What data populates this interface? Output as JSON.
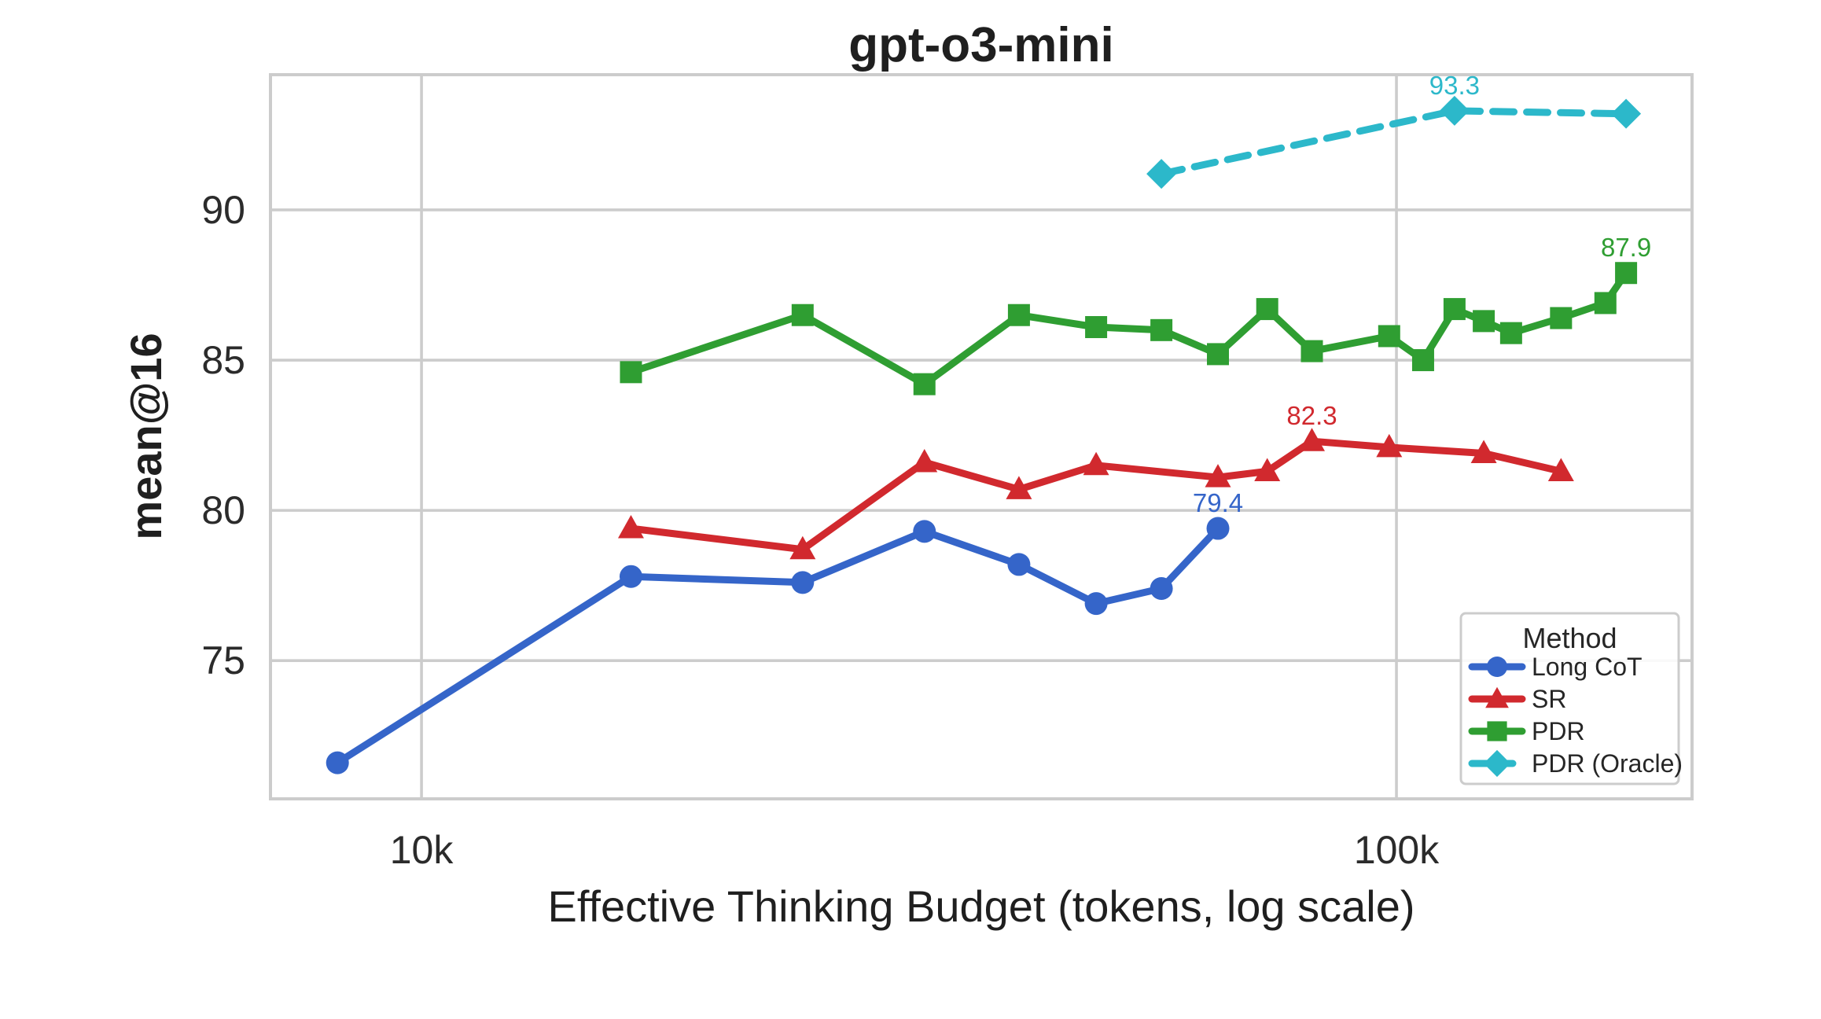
{
  "colors": {
    "background": "#ffffff",
    "grid": "#cccccc",
    "plot_border": "#cccccc",
    "text": "#1f1f1f",
    "tick_text": "#2b2b2b"
  },
  "chart_data": {
    "type": "line",
    "title": "gpt-o3-mini",
    "xlabel": "Effective Thinking Budget (tokens, log scale)",
    "ylabel": "mean@16",
    "x_scale": "log",
    "xlim": [
      7000,
      201000
    ],
    "ylim": [
      70.4,
      94.5
    ],
    "grid": true,
    "x_ticks": [
      {
        "value": 10000,
        "label": "10k"
      },
      {
        "value": 100000,
        "label": "100k"
      }
    ],
    "y_ticks": [
      {
        "value": 75,
        "label": "75"
      },
      {
        "value": 80,
        "label": "80"
      },
      {
        "value": 85,
        "label": "85"
      },
      {
        "value": 90,
        "label": "90"
      }
    ],
    "legend": {
      "title": "Method",
      "position": "lower right"
    },
    "series": [
      {
        "name": "Long CoT",
        "color": "#3565c9",
        "marker": "circle",
        "line_style": "solid",
        "x": [
          8200,
          16400,
          24600,
          32800,
          41000,
          49200,
          57400,
          65600
        ],
        "y": [
          71.6,
          77.8,
          77.6,
          79.3,
          78.2,
          76.9,
          77.4,
          79.4
        ]
      },
      {
        "name": "SR",
        "color": "#d1292e",
        "marker": "triangle",
        "line_style": "solid",
        "x": [
          16400,
          24600,
          32800,
          41000,
          49200,
          65600,
          73700,
          81900,
          98300,
          122900,
          147500
        ],
        "y": [
          79.4,
          78.7,
          81.6,
          80.7,
          81.5,
          81.1,
          81.3,
          82.3,
          82.1,
          81.9,
          81.3
        ]
      },
      {
        "name": "PDR",
        "color": "#2f9e32",
        "marker": "square",
        "line_style": "solid",
        "x": [
          16400,
          24600,
          32800,
          41000,
          49200,
          57400,
          65600,
          73700,
          81900,
          98300,
          106500,
          114700,
          122900,
          131100,
          147500,
          163800,
          172000
        ],
        "y": [
          84.6,
          86.5,
          84.2,
          86.5,
          86.1,
          86.0,
          85.2,
          86.7,
          85.3,
          85.8,
          85.0,
          86.7,
          86.3,
          85.9,
          86.4,
          86.9,
          87.9
        ]
      },
      {
        "name": "PDR (Oracle)",
        "color": "#2cb8ca",
        "marker": "diamond",
        "line_style": "dashed",
        "x": [
          57400,
          114700,
          172000
        ],
        "y": [
          91.2,
          93.3,
          93.2
        ]
      }
    ],
    "point_labels": [
      {
        "series": "Long CoT",
        "x": 65600,
        "y": 79.4,
        "text": "79.4"
      },
      {
        "series": "SR",
        "x": 81900,
        "y": 82.3,
        "text": "82.3"
      },
      {
        "series": "PDR",
        "x": 172000,
        "y": 87.9,
        "text": "87.9"
      },
      {
        "series": "PDR (Oracle)",
        "x": 114700,
        "y": 93.3,
        "text": "93.3"
      }
    ]
  }
}
